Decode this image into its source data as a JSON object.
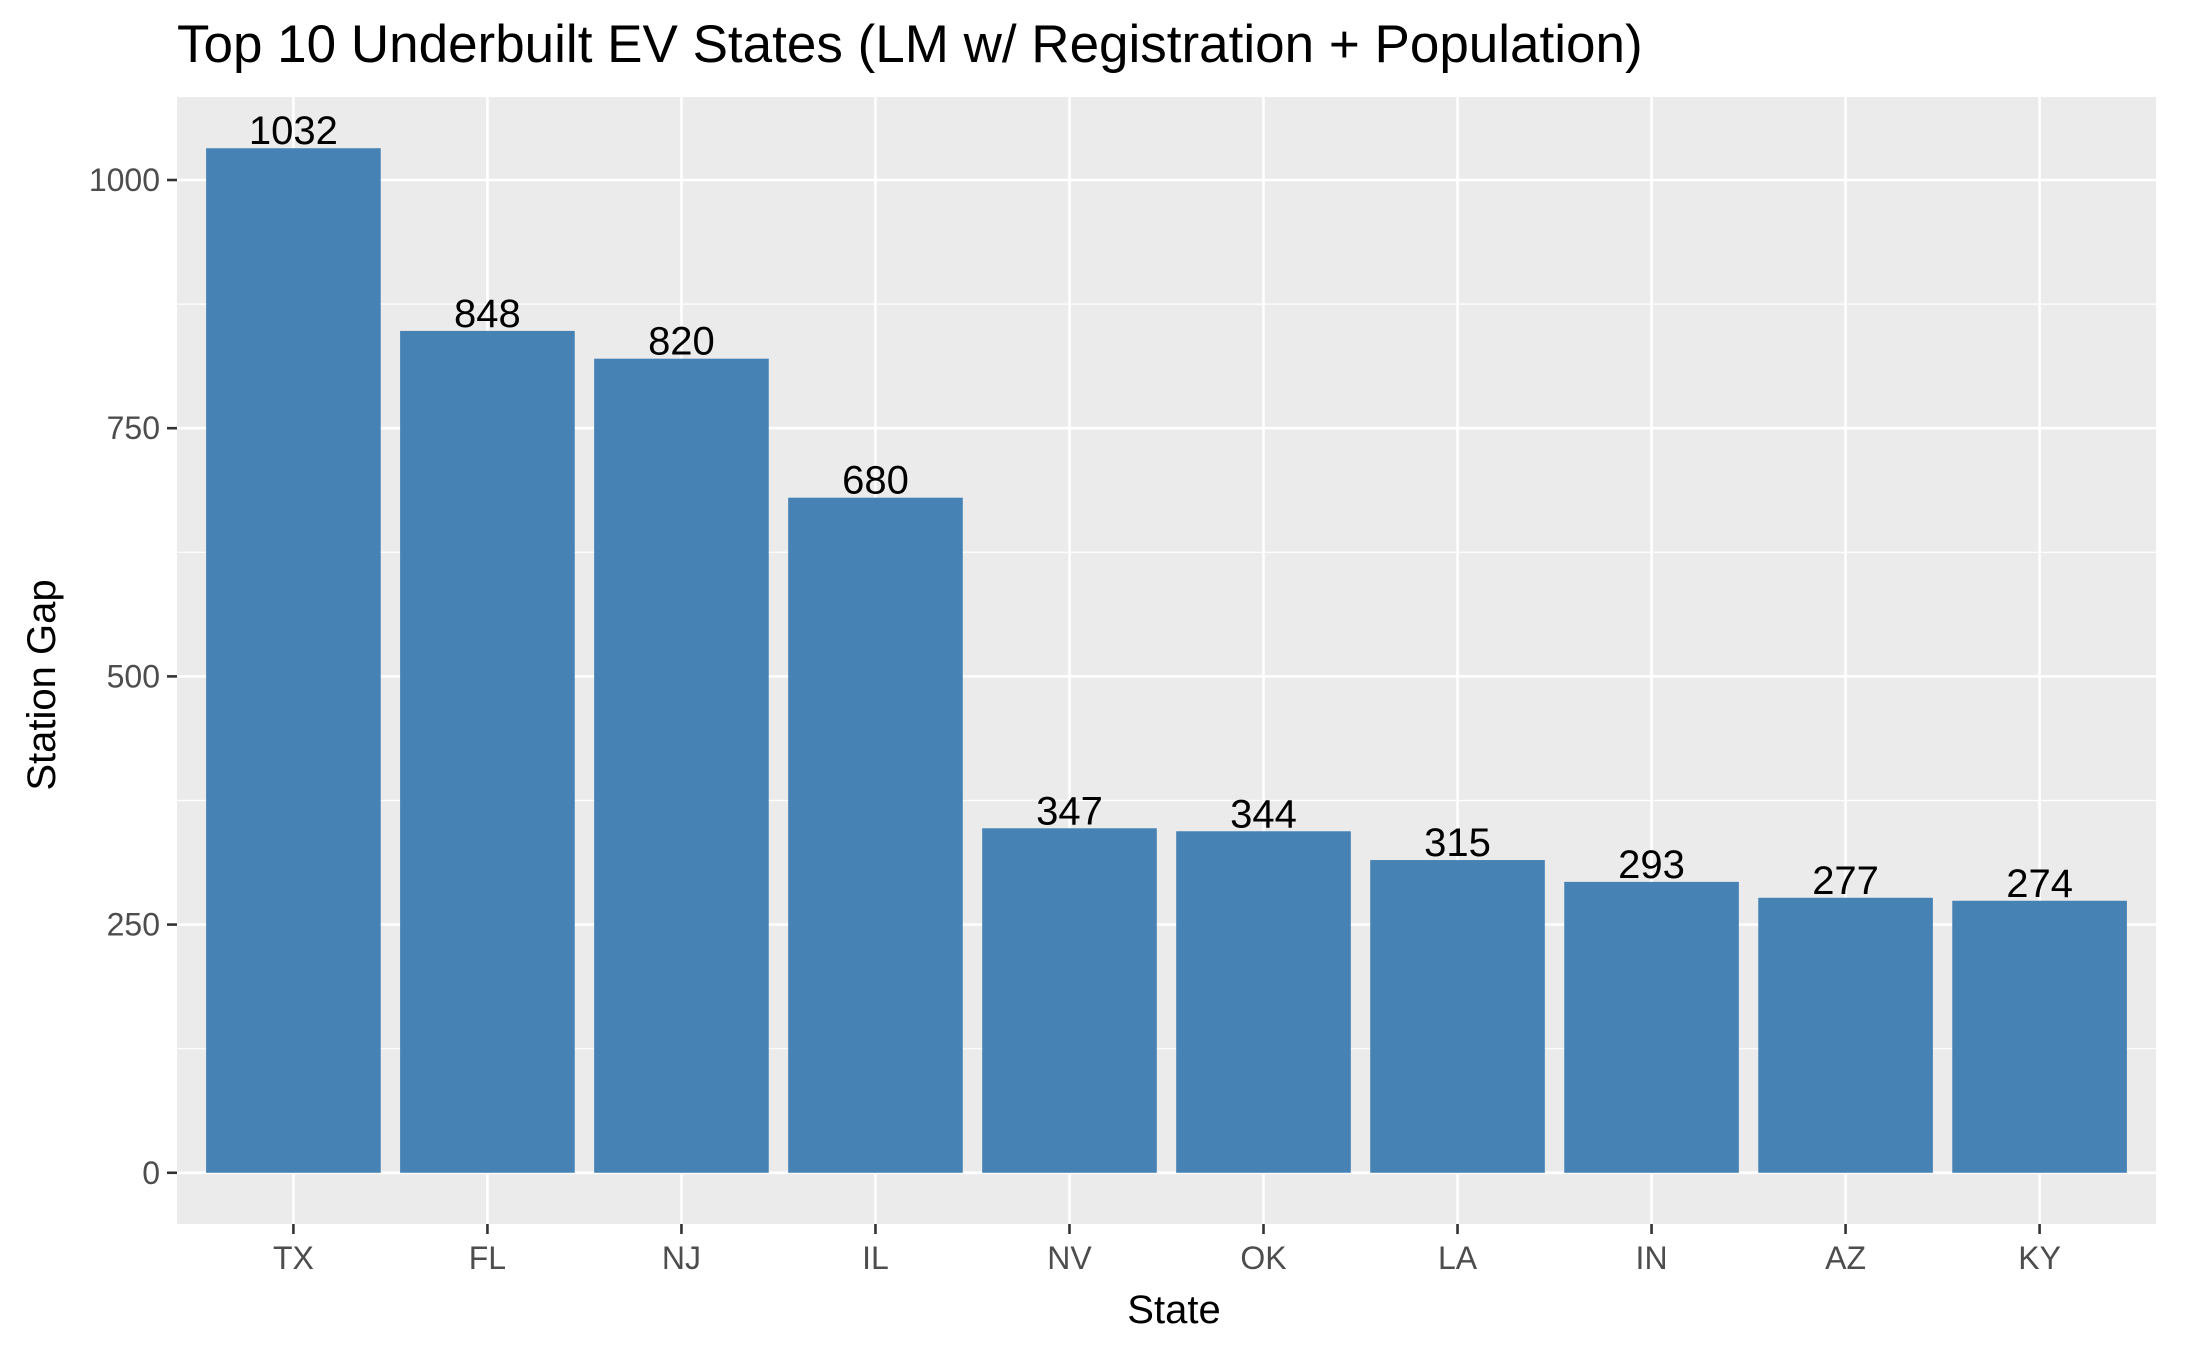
{
  "chart_data": {
    "type": "bar",
    "title": "Top 10 Underbuilt EV States (LM w/ Registration + Population)",
    "xlabel": "State",
    "ylabel": "Station Gap",
    "categories": [
      "TX",
      "FL",
      "NJ",
      "IL",
      "NV",
      "OK",
      "LA",
      "IN",
      "AZ",
      "KY"
    ],
    "values": [
      1032,
      848,
      820,
      680,
      347,
      344,
      315,
      293,
      277,
      274
    ],
    "data_labels": [
      "1032",
      "848",
      "820",
      "680",
      "347",
      "344",
      "315",
      "293",
      "277",
      "274"
    ],
    "ylim": [
      -51.6,
      1083.6
    ],
    "y_ticks": [
      0,
      250,
      500,
      750,
      1000
    ],
    "y_tick_labels": [
      "0",
      "250",
      "500",
      "750",
      "1000"
    ],
    "grid": true,
    "legend": "none",
    "colors": {
      "bar": "#4682B4",
      "panel": "#EBEBEB",
      "grid": "#FFFFFF",
      "text": "#000000",
      "tick_text": "#4D4D4D",
      "tick_mark": "#333333"
    }
  }
}
